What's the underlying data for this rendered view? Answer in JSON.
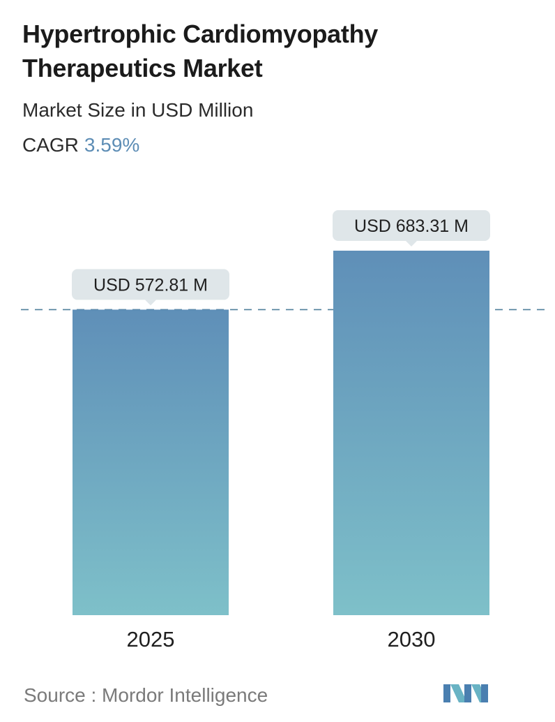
{
  "title": "Hypertrophic Cardiomyopathy Therapeutics Market",
  "subtitle": "Market Size in USD Million",
  "cagr_label": "CAGR",
  "cagr_value": "3.59%",
  "source": "Source :  Mordor Intelligence",
  "logo": {
    "icon": "mordor-intelligence-logo",
    "colors": [
      "#4a7fb0",
      "#69b3c4"
    ]
  },
  "colors": {
    "bar_top": "#5f8fb8",
    "bar_bottom": "#7ec0c9",
    "label_bg": "#dfe6e9",
    "reference_line": "#4f7f9b",
    "cagr_value": "#5d8db5"
  },
  "chart_data": {
    "type": "bar",
    "categories": [
      "2025",
      "2030"
    ],
    "values": [
      572.81,
      683.31
    ],
    "data_labels": [
      "USD 572.81 M",
      "USD 683.31 M"
    ],
    "reference_line": {
      "value": 572.81,
      "style": "dashed"
    },
    "grid": false,
    "legend": false
  }
}
